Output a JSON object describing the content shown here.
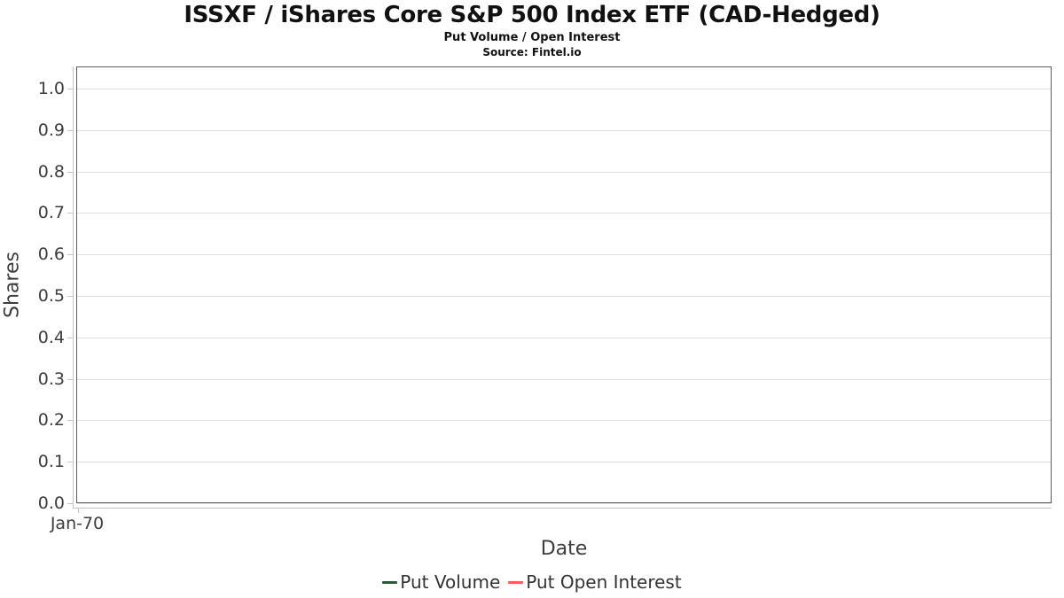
{
  "colors": {
    "plot_border": "#5c5c5c",
    "axis_line": "#c4c4c4",
    "gridline": "#dfdfdf",
    "tick_text": "#3d3d3d",
    "title_text": "#111111"
  },
  "chart_data": {
    "type": "line",
    "title": "ISSXF / iShares Core S&P 500 Index ETF (CAD-Hedged)",
    "subtitle": "Put Volume / Open Interest",
    "source": "Source: Fintel.io",
    "xlabel": "Date",
    "ylabel": "Shares",
    "ylim": [
      0.0,
      1.0
    ],
    "grid": "horizontal",
    "legend_position": "bottom-center",
    "y_ticks": [
      {
        "label": "1.0",
        "value": 1.0
      },
      {
        "label": "0.9",
        "value": 0.9
      },
      {
        "label": "0.8",
        "value": 0.8
      },
      {
        "label": "0.7",
        "value": 0.7
      },
      {
        "label": "0.6",
        "value": 0.6
      },
      {
        "label": "0.5",
        "value": 0.5
      },
      {
        "label": "0.4",
        "value": 0.4
      },
      {
        "label": "0.3",
        "value": 0.3
      },
      {
        "label": "0.2",
        "value": 0.2
      },
      {
        "label": "0.1",
        "value": 0.1
      },
      {
        "label": "0.0",
        "value": 0.0
      }
    ],
    "x_ticks": [
      {
        "label": "Jan-70",
        "fraction": 0.0
      }
    ],
    "series": [
      {
        "name": "Put Volume",
        "color": "#2d5839",
        "x": [],
        "values": []
      },
      {
        "name": "Put Open Interest",
        "color": "#fa5f5f",
        "x": [],
        "values": []
      }
    ],
    "note": "plot area contains no plotted data points"
  }
}
